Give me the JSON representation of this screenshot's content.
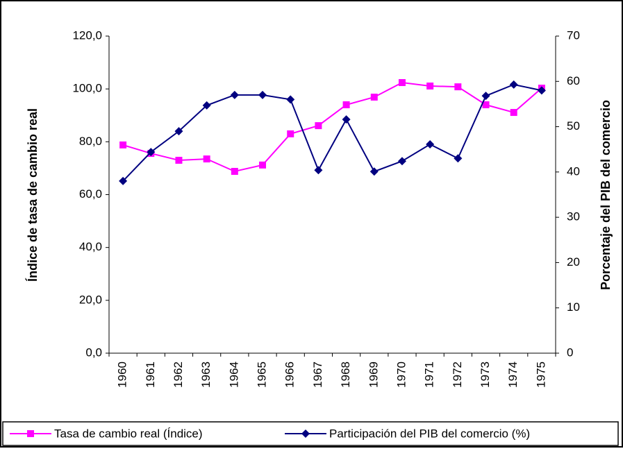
{
  "chart_data": {
    "type": "line",
    "categories": [
      "1960",
      "1961",
      "1962",
      "1963",
      "1964",
      "1965",
      "1966",
      "1967",
      "1968",
      "1969",
      "1970",
      "1971",
      "1972",
      "1973",
      "1974",
      "1975"
    ],
    "series": [
      {
        "name": "Tasa de cambio real (Índice)",
        "color": "#ff00ff",
        "marker": "square",
        "values": [
          78.8,
          75.6,
          73.0,
          73.5,
          68.8,
          71.2,
          83.0,
          86.1,
          94.0,
          96.9,
          102.4,
          101.1,
          100.8,
          94.0,
          91.1,
          100.3
        ]
      },
      {
        "name": "Participación del PIB del comercio (%)",
        "color": "#000080",
        "marker": "diamond",
        "axis": "y2",
        "values": [
          38.0,
          44.4,
          49.0,
          54.7,
          57.0,
          57.0,
          56.0,
          40.4,
          51.6,
          40.1,
          42.4,
          46.1,
          43.0,
          56.8,
          59.3,
          58.0
        ]
      }
    ],
    "ylabel": "Índice de tasa de cambio real",
    "y2label": "Porcentaje del PIB del comercio",
    "ylim": [
      0,
      120
    ],
    "yticks": [
      {
        "value": 0,
        "label": "0,0"
      },
      {
        "value": 20,
        "label": "20,0"
      },
      {
        "value": 40,
        "label": "40,0"
      },
      {
        "value": 60,
        "label": "60,0"
      },
      {
        "value": 80,
        "label": "80,0"
      },
      {
        "value": 100,
        "label": "100,0"
      },
      {
        "value": 120,
        "label": "120,0"
      }
    ],
    "y2lim": [
      0,
      70
    ],
    "y2ticks": [
      0,
      10,
      20,
      30,
      40,
      50,
      60,
      70
    ],
    "legend": "bottom"
  }
}
